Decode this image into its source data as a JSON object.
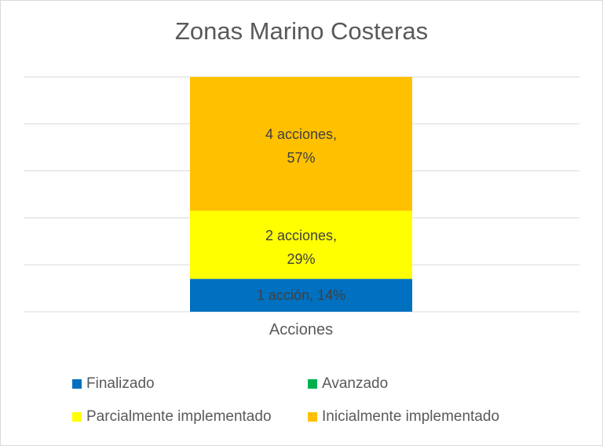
{
  "chart_data": {
    "type": "bar",
    "stacked": true,
    "percent": true,
    "title": "Zonas Marino Costeras",
    "categories": [
      "Acciones"
    ],
    "series": [
      {
        "name": "Finalizado",
        "values": [
          1
        ],
        "percent": 14,
        "label": "1 acción, 14%",
        "color": "#0070C0"
      },
      {
        "name": "Avanzado",
        "values": [
          0
        ],
        "percent": 0,
        "label": "",
        "color": "#00B050"
      },
      {
        "name": "Parcialmente implementado",
        "values": [
          2
        ],
        "percent": 29,
        "label": "2 acciones, 29%",
        "color": "#FFFF00"
      },
      {
        "name": "Inicialmente implementado",
        "values": [
          4
        ],
        "percent": 57,
        "label": "4 acciones, 57%",
        "color": "#FFC000"
      }
    ],
    "ylim": [
      0,
      100
    ],
    "grid": true,
    "grid_step": 20,
    "legend_placement": "bottom"
  }
}
